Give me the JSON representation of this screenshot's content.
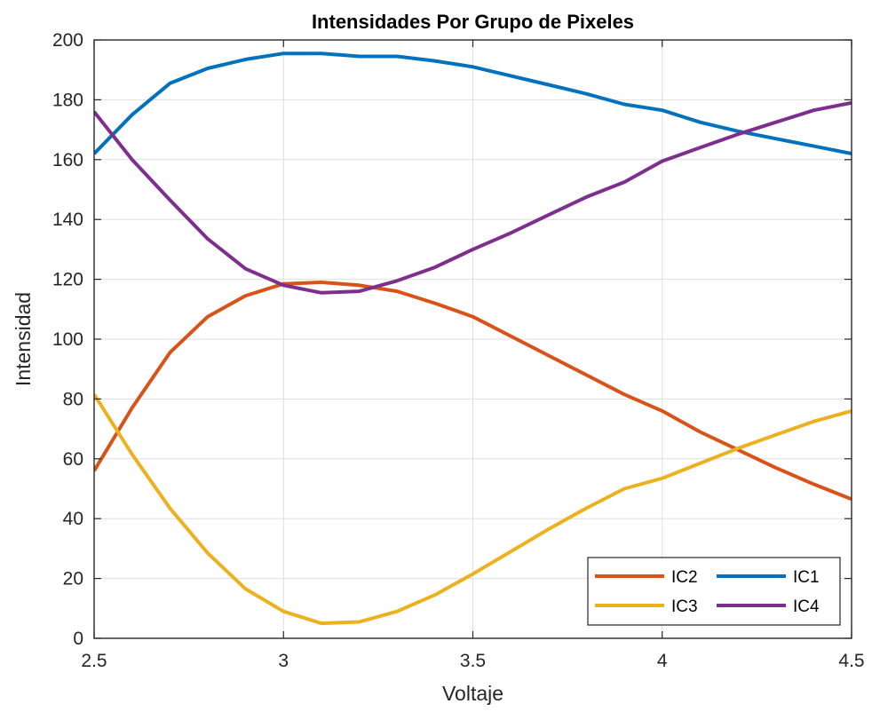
{
  "chart_data": {
    "type": "line",
    "title": "Intensidades Por Grupo de Pixeles",
    "xlabel": "Voltaje",
    "ylabel": "Intensidad",
    "xlim": [
      2.5,
      4.5
    ],
    "ylim": [
      0,
      200
    ],
    "xticks": [
      2.5,
      3,
      3.5,
      4,
      4.5
    ],
    "xtick_labels": [
      "2.5",
      "3",
      "3.5",
      "4",
      "4.5"
    ],
    "yticks": [
      0,
      20,
      40,
      60,
      80,
      100,
      120,
      140,
      160,
      180,
      200
    ],
    "ytick_labels": [
      "0",
      "20",
      "40",
      "60",
      "80",
      "100",
      "120",
      "140",
      "160",
      "180",
      "200"
    ],
    "grid": true,
    "legend_position": "bottom-right",
    "x": [
      2.5,
      2.6,
      2.7,
      2.8,
      2.9,
      3.0,
      3.1,
      3.2,
      3.3,
      3.4,
      3.5,
      3.6,
      3.7,
      3.8,
      3.9,
      4.0,
      4.1,
      4.2,
      4.3,
      4.4,
      4.5
    ],
    "series": [
      {
        "name": "IC2",
        "color": "#D95319",
        "values": [
          56,
          77,
          95.5,
          107.5,
          114.5,
          118.5,
          119,
          118,
          116,
          112,
          107.5,
          101,
          94.5,
          88,
          81.5,
          76,
          69,
          63,
          57,
          51.5,
          46.5
        ]
      },
      {
        "name": "IC1",
        "color": "#0072BD",
        "values": [
          162,
          175,
          185.5,
          190.5,
          193.5,
          195.5,
          195.5,
          194.5,
          194.5,
          193,
          191,
          188,
          185,
          182,
          178.5,
          176.5,
          172.5,
          169.5,
          167,
          164.5,
          162
        ]
      },
      {
        "name": "IC3",
        "color": "#EDB120",
        "values": [
          81.5,
          61.5,
          43.5,
          28.5,
          16.5,
          9,
          5,
          5.5,
          9,
          14.5,
          21.5,
          29,
          36.5,
          43.5,
          50,
          53.5,
          58.5,
          63.5,
          68,
          72.5,
          76
        ]
      },
      {
        "name": "IC4",
        "color": "#7E2F8E",
        "values": [
          176,
          160,
          146.5,
          133.5,
          123.5,
          118,
          115.5,
          116,
          119.5,
          124,
          130,
          135.5,
          141.5,
          147.5,
          152.5,
          159.5,
          164,
          168.5,
          172.5,
          176.5,
          179
        ]
      }
    ]
  }
}
